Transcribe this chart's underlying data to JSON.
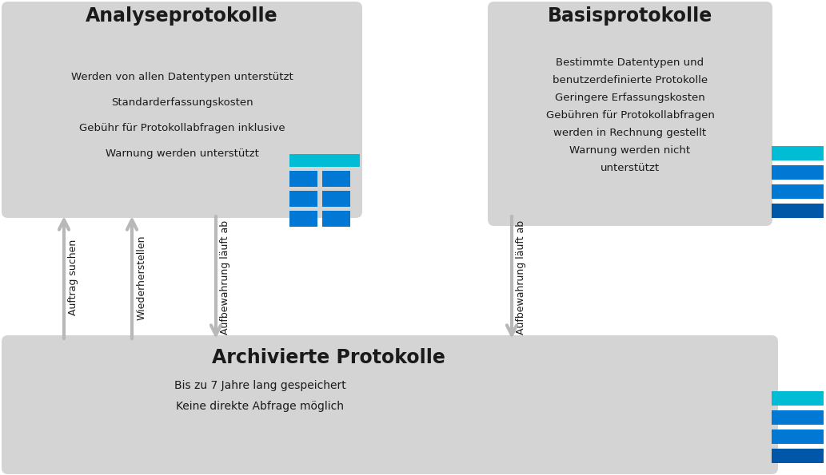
{
  "bg_color": "#ffffff",
  "box_gray": "#d4d4d4",
  "cyan_color": "#00BCD4",
  "blue_color": "#0078D4",
  "dark_blue_color": "#0057A8",
  "arrow_gray": "#b8b8b8",
  "text_dark": "#1a1a1a",
  "analyse_title": "Analyseprotokolle",
  "analyse_lines": [
    "Werden von allen Datentypen unterstützt",
    "Standarderfassungskosten",
    "Gebühr für Protokollabfragen inklusive",
    "Warnung werden unterstützt"
  ],
  "basis_title": "Basisprotokolle",
  "basis_lines": [
    "Bestimmte Datentypen und",
    "benutzerdefinierte Protokolle",
    "Geringere Erfassungskosten",
    "Gebühren für Protokollabfragen",
    "werden in Rechnung gestellt",
    "Warnung werden nicht",
    "unterstützt"
  ],
  "archiv_title": "Archivierte Protokolle",
  "archiv_lines": [
    "Bis zu 7 Jahre lang gespeichert",
    "Keine direkte Abfrage möglich"
  ],
  "arrow_labels": [
    "Auftrag suchen",
    "Wiederherstellen",
    "Aufbewahrung läuft ab",
    "Aufbewahrung läuft ab"
  ]
}
